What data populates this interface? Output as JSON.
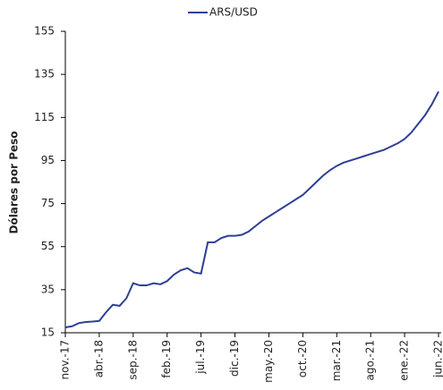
{
  "chart_data": {
    "type": "line",
    "categories": [
      "nov.-17",
      null,
      null,
      null,
      null,
      "abr.-18",
      null,
      null,
      null,
      null,
      "sep.-18",
      null,
      null,
      null,
      null,
      "feb.-19",
      null,
      null,
      null,
      null,
      "jul.-19",
      null,
      null,
      null,
      null,
      "dic.-19",
      null,
      null,
      null,
      null,
      "may.-20",
      null,
      null,
      null,
      null,
      "oct.-20",
      null,
      null,
      null,
      null,
      "mar.-21",
      null,
      null,
      null,
      null,
      "ago.-21",
      null,
      null,
      null,
      null,
      "ene.-22",
      null,
      null,
      null,
      null,
      "jun.-22"
    ],
    "series": [
      {
        "name": "ARS/USD",
        "color": "#2e3f96",
        "values": [
          17.5,
          18,
          19.5,
          20,
          20.2,
          20.5,
          24.5,
          28,
          27.5,
          31,
          38,
          37,
          37,
          38,
          37.5,
          39,
          42,
          44,
          45,
          43,
          42.5,
          57,
          57,
          59,
          60,
          60,
          60.5,
          62,
          64.5,
          67,
          69,
          71,
          73,
          75,
          77,
          79,
          82,
          85,
          88,
          90.5,
          92.5,
          94,
          95,
          96,
          97,
          98,
          99,
          100,
          101.5,
          103,
          105,
          108,
          112,
          116,
          121,
          127
        ]
      }
    ],
    "y_label": "Dólares por Peso",
    "ylim": [
      15,
      155
    ],
    "yticks": [
      15,
      35,
      55,
      75,
      95,
      115,
      135,
      155
    ],
    "legend": "top"
  }
}
